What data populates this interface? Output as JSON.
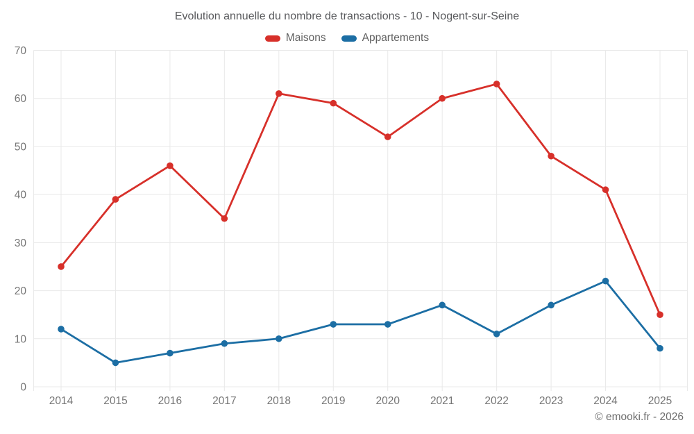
{
  "header": {
    "title": "Evolution annuelle du nombre de transactions - 10 - Nogent-sur-Seine"
  },
  "footer": {
    "copyright": "© emooki.fr - 2026"
  },
  "chart_data": {
    "type": "line",
    "title": "Evolution annuelle du nombre de transactions - 10 - Nogent-sur-Seine",
    "categories": [
      "2014",
      "2015",
      "2016",
      "2017",
      "2018",
      "2019",
      "2020",
      "2021",
      "2022",
      "2023",
      "2024",
      "2025"
    ],
    "series": [
      {
        "name": "Maisons",
        "color": "#d7302a",
        "values": [
          25,
          39,
          46,
          35,
          61,
          59,
          52,
          60,
          63,
          48,
          41,
          15
        ]
      },
      {
        "name": "Appartements",
        "color": "#1c6ea4",
        "values": [
          12,
          5,
          7,
          9,
          10,
          13,
          13,
          17,
          11,
          17,
          22,
          8
        ]
      }
    ],
    "xlabel": "",
    "ylabel": "",
    "ylim": [
      0,
      70
    ],
    "y_ticks": [
      0,
      10,
      20,
      30,
      40,
      50,
      60,
      70
    ],
    "grid": true,
    "grid_color": "#e9e9e9",
    "axis_label_color": "#757575",
    "legend_position": "top"
  }
}
